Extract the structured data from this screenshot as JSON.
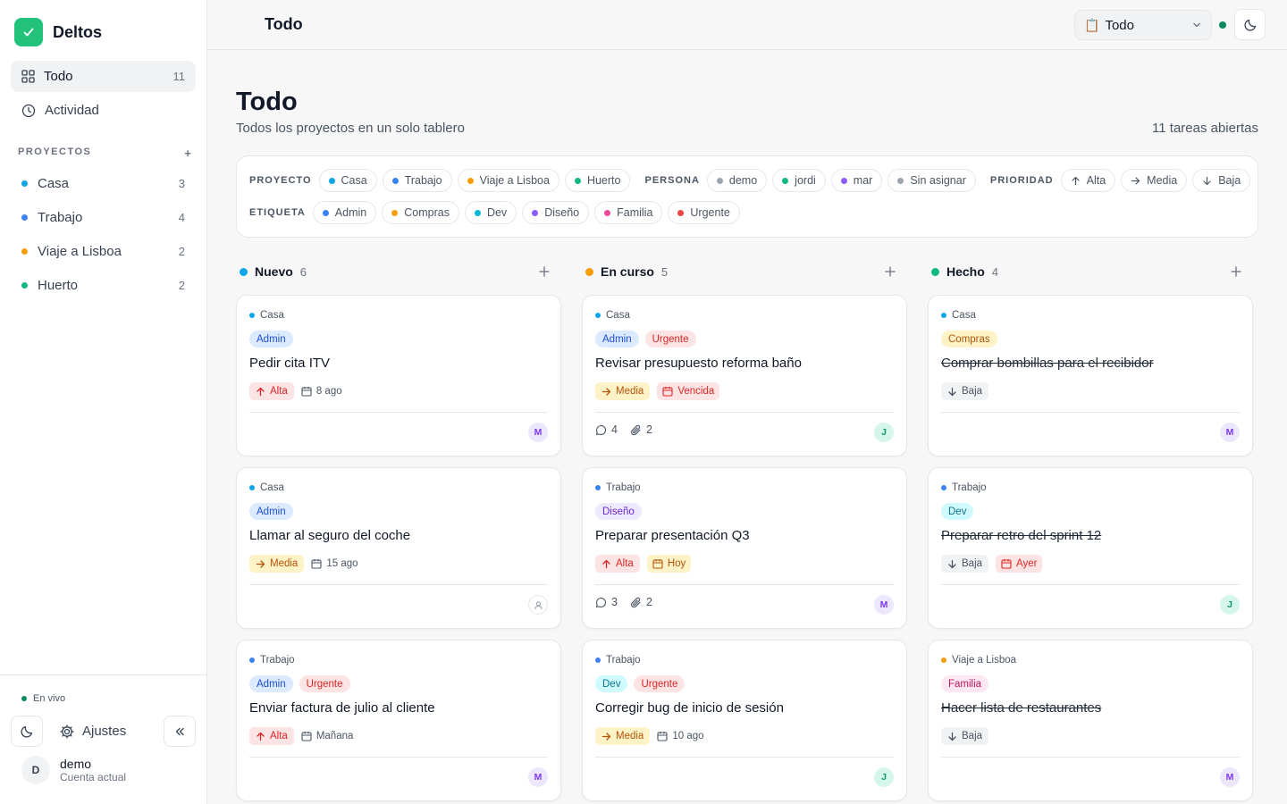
{
  "app": {
    "name": "Deltos"
  },
  "colors": {
    "accent": "#22c27a",
    "live": "#0e8a5f"
  },
  "sidebar": {
    "nav": [
      {
        "label": "Todo",
        "count": "11",
        "icon": "grid-icon"
      },
      {
        "label": "Actividad",
        "icon": "clock-icon"
      }
    ],
    "projects_heading": "PROYECTOS",
    "projects_add": "+",
    "projects": [
      {
        "name": "Casa",
        "count": "3",
        "color": "#0ea5e9"
      },
      {
        "name": "Trabajo",
        "count": "4",
        "color": "#3b82f6"
      },
      {
        "name": "Viaje a Lisboa",
        "count": "2",
        "color": "#f59e0b"
      },
      {
        "name": "Huerto",
        "count": "2",
        "color": "#10b981"
      }
    ],
    "live": "En vivo",
    "settings": "Ajustes",
    "user": {
      "initial": "D",
      "name": "demo",
      "subtitle": "Cuenta actual"
    }
  },
  "topbar": {
    "title": "Todo",
    "select_icon": "📋",
    "select_value": "Todo"
  },
  "page": {
    "title": "Todo",
    "subtitle": "Todos los proyectos en un solo tablero",
    "open_tasks": "11 tareas abiertas"
  },
  "filters": {
    "proyecto_label": "PROYECTO",
    "persona_label": "PERSONA",
    "prioridad_label": "PRIORIDAD",
    "etiqueta_label": "ETIQUETA",
    "proyecto": [
      {
        "label": "Casa",
        "color": "#0ea5e9"
      },
      {
        "label": "Trabajo",
        "color": "#3b82f6"
      },
      {
        "label": "Viaje a Lisboa",
        "color": "#f59e0b"
      },
      {
        "label": "Huerto",
        "color": "#10b981"
      }
    ],
    "persona": [
      {
        "label": "demo",
        "color": "#9ca3af"
      },
      {
        "label": "jordi",
        "color": "#10b981"
      },
      {
        "label": "mar",
        "color": "#8b5cf6"
      },
      {
        "label": "Sin asignar",
        "color": "#9ca3af"
      }
    ],
    "prioridad": [
      {
        "label": "Alta",
        "icon": "arrow-up-icon"
      },
      {
        "label": "Media",
        "icon": "arrow-right-icon"
      },
      {
        "label": "Baja",
        "icon": "arrow-down-icon"
      }
    ],
    "etiqueta": [
      {
        "label": "Admin",
        "color": "#3b82f6"
      },
      {
        "label": "Compras",
        "color": "#f59e0b"
      },
      {
        "label": "Dev",
        "color": "#06b6d4"
      },
      {
        "label": "Diseño",
        "color": "#8b5cf6"
      },
      {
        "label": "Familia",
        "color": "#ec4899"
      },
      {
        "label": "Urgente",
        "color": "#ef4444"
      }
    ]
  },
  "columns": [
    {
      "title": "Nuevo",
      "count": "6",
      "color": "#0ea5e9",
      "cards": [
        {
          "project": "Casa",
          "project_color": "#0ea5e9",
          "tags": [
            "Admin"
          ],
          "title": "Pedir cita ITV",
          "priority": "Alta",
          "due": "8 ago",
          "due_style": "plain",
          "comments": null,
          "attachments": null,
          "assignee": "M",
          "done": false
        },
        {
          "project": "Casa",
          "project_color": "#0ea5e9",
          "tags": [
            "Admin"
          ],
          "title": "Llamar al seguro del coche",
          "priority": "Media",
          "due": "15 ago",
          "due_style": "plain",
          "comments": null,
          "attachments": null,
          "assignee": "",
          "done": false
        },
        {
          "project": "Trabajo",
          "project_color": "#3b82f6",
          "tags": [
            "Admin",
            "Urgente"
          ],
          "title": "Enviar factura de julio al cliente",
          "priority": "Alta",
          "due": "Mañana",
          "due_style": "plain",
          "comments": null,
          "attachments": null,
          "assignee": "M",
          "done": false
        }
      ]
    },
    {
      "title": "En curso",
      "count": "5",
      "color": "#f59e0b",
      "cards": [
        {
          "project": "Casa",
          "project_color": "#0ea5e9",
          "tags": [
            "Admin",
            "Urgente"
          ],
          "title": "Revisar presupuesto reforma baño",
          "priority": "Media",
          "due": "Vencida",
          "due_style": "overdue",
          "comments": "4",
          "attachments": "2",
          "assignee": "J",
          "done": false
        },
        {
          "project": "Trabajo",
          "project_color": "#3b82f6",
          "tags": [
            "Diseño"
          ],
          "title": "Preparar presentación Q3",
          "priority": "Alta",
          "due": "Hoy",
          "due_style": "today",
          "comments": "3",
          "attachments": "2",
          "assignee": "M",
          "done": false
        },
        {
          "project": "Trabajo",
          "project_color": "#3b82f6",
          "tags": [
            "Dev",
            "Urgente"
          ],
          "title": "Corregir bug de inicio de sesión",
          "priority": "Media",
          "due": "10 ago",
          "due_style": "plain",
          "comments": null,
          "attachments": null,
          "assignee": "J",
          "done": false
        }
      ]
    },
    {
      "title": "Hecho",
      "count": "4",
      "color": "#10b981",
      "cards": [
        {
          "project": "Casa",
          "project_color": "#0ea5e9",
          "tags": [
            "Compras"
          ],
          "title": "Comprar bombillas para el recibidor",
          "priority": "Baja",
          "due": null,
          "due_style": "plain",
          "comments": null,
          "attachments": null,
          "assignee": "M",
          "done": true
        },
        {
          "project": "Trabajo",
          "project_color": "#3b82f6",
          "tags": [
            "Dev"
          ],
          "title": "Preparar retro del sprint 12",
          "priority": "Baja",
          "due": "Ayer",
          "due_style": "overdue",
          "comments": null,
          "attachments": null,
          "assignee": "J",
          "done": true
        },
        {
          "project": "Viaje a Lisboa",
          "project_color": "#f59e0b",
          "tags": [
            "Familia"
          ],
          "title": "Hacer lista de restaurantes",
          "priority": "Baja",
          "due": null,
          "due_style": "plain",
          "comments": null,
          "attachments": null,
          "assignee": "M",
          "done": true
        }
      ]
    }
  ]
}
